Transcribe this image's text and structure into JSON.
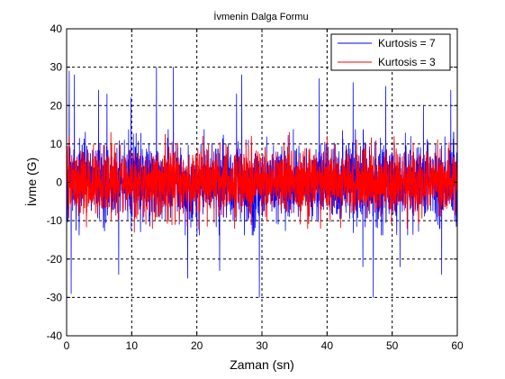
{
  "chart_data": {
    "type": "line",
    "title": "İvmenin Dalga Formu",
    "xlabel": "Zaman (sn)",
    "ylabel": "İvme (G)",
    "xlim": [
      0,
      60
    ],
    "ylim": [
      -40,
      40
    ],
    "xticks": [
      0,
      10,
      20,
      30,
      40,
      50,
      60
    ],
    "yticks": [
      -40,
      -30,
      -20,
      -10,
      0,
      10,
      20,
      30,
      40
    ],
    "grid": true,
    "legend_position": "top-right",
    "series": [
      {
        "name": "Kurtosis = 7",
        "color": "#0000ff",
        "envelope_typical": [
          -11,
          11
        ],
        "peaks": [
          {
            "x": 0.4,
            "y": 29
          },
          {
            "x": 0.7,
            "y": -29
          },
          {
            "x": 1.2,
            "y": 28
          },
          {
            "x": 4.9,
            "y": 24
          },
          {
            "x": 6.2,
            "y": 23
          },
          {
            "x": 8.0,
            "y": -24
          },
          {
            "x": 9.9,
            "y": 22
          },
          {
            "x": 13.8,
            "y": 30
          },
          {
            "x": 16.4,
            "y": 30
          },
          {
            "x": 18.6,
            "y": -25
          },
          {
            "x": 23.5,
            "y": -23
          },
          {
            "x": 26.1,
            "y": 23
          },
          {
            "x": 26.9,
            "y": 28
          },
          {
            "x": 29.6,
            "y": -30
          },
          {
            "x": 38.8,
            "y": 27
          },
          {
            "x": 44.0,
            "y": 26
          },
          {
            "x": 45.5,
            "y": -22
          },
          {
            "x": 47.1,
            "y": -30
          },
          {
            "x": 49.0,
            "y": 25
          },
          {
            "x": 51.2,
            "y": -22
          },
          {
            "x": 54.8,
            "y": 20
          },
          {
            "x": 57.6,
            "y": -24
          },
          {
            "x": 59.0,
            "y": 24
          }
        ]
      },
      {
        "name": "Kurtosis = 3",
        "color": "#ff0000",
        "envelope_typical": [
          -10,
          10
        ],
        "peaks": [
          {
            "x": 6.8,
            "y": 13
          },
          {
            "x": 10.4,
            "y": -13
          },
          {
            "x": 20.9,
            "y": 12
          },
          {
            "x": 25.8,
            "y": -12
          },
          {
            "x": 34.2,
            "y": 13
          },
          {
            "x": 39.0,
            "y": -12
          },
          {
            "x": 40.0,
            "y": 12
          },
          {
            "x": 52.3,
            "y": -12
          }
        ]
      }
    ]
  }
}
